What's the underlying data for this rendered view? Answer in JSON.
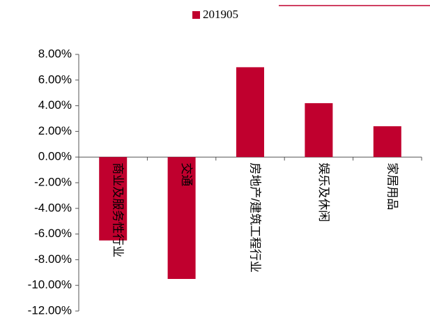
{
  "chart_data": {
    "type": "bar",
    "series": [
      {
        "name": "201905",
        "color": "#c0002e",
        "values": [
          -6.5,
          -9.5,
          7.0,
          4.2,
          2.4
        ]
      }
    ],
    "categories": [
      "商业及服务性行业",
      "交通",
      "房地产/建筑工程行业",
      "娱乐及休闲",
      "家居用品"
    ],
    "ylim": [
      -12,
      8
    ],
    "yticks": [
      {
        "value": -12,
        "label": "-12.00%"
      },
      {
        "value": -10,
        "label": "-10.00%"
      },
      {
        "value": -8,
        "label": "-8.00%"
      },
      {
        "value": -6,
        "label": "-6.00%"
      },
      {
        "value": -4,
        "label": "-4.00%"
      },
      {
        "value": -2,
        "label": "-2.00%"
      },
      {
        "value": 0,
        "label": "0.00%"
      },
      {
        "value": 2,
        "label": "2.00%"
      },
      {
        "value": 4,
        "label": "4.00%"
      },
      {
        "value": 6,
        "label": "6.00%"
      },
      {
        "value": 8,
        "label": "8.00%"
      }
    ],
    "grid": false,
    "legend": "top"
  }
}
